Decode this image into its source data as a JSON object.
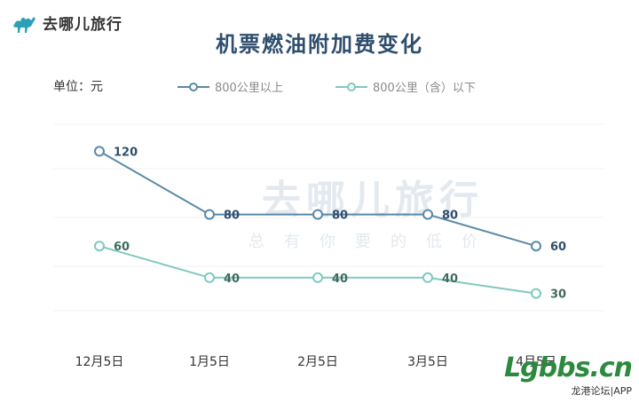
{
  "brand": {
    "name": "去哪儿旅行",
    "icon": "camel-icon"
  },
  "chart_data": {
    "type": "line",
    "title": "机票燃油附加费变化",
    "unit_label": "单位：元",
    "categories": [
      "12月5日",
      "1月5日",
      "2月5日",
      "3月5日",
      "4月5日"
    ],
    "series": [
      {
        "name": "800公里以上",
        "values": [
          120,
          80,
          80,
          80,
          60
        ],
        "color": "#5b89a6"
      },
      {
        "name": "800公里（含）以下",
        "values": [
          60,
          40,
          40,
          40,
          30
        ],
        "color": "#7fc9bf"
      }
    ],
    "ylim": [
      0,
      140
    ],
    "grid": true,
    "legend": "top"
  },
  "background_watermark": {
    "text": "去哪儿旅行",
    "slogan": "总有你要的低价"
  },
  "corner_watermark": {
    "site": "Lgbbs.cn",
    "sub": "龙港论坛|APP"
  }
}
